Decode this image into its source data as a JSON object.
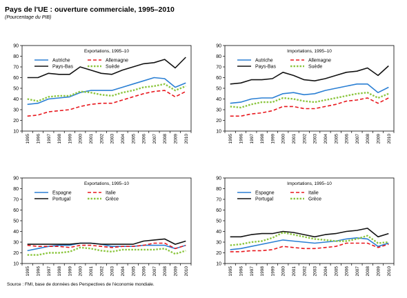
{
  "title": "Pays de l'UE : ouverture commerciale, 1995–2010",
  "subtitle": "(Pourcentage du PIB)",
  "source": "Source : FMI, base de données des Perspectives de l'économie mondiale.",
  "colors": {
    "blue": "#2a7fd4",
    "red": "#e8161c",
    "black": "#111111",
    "green": "#8cc63f"
  },
  "chart_data": [
    {
      "type": "line",
      "title": "Exportations, 1995–10",
      "x": [
        "1995",
        "1996",
        "1997",
        "1998",
        "1999",
        "2000",
        "2001",
        "2002",
        "2003",
        "2004",
        "2005",
        "2006",
        "2007",
        "2008",
        "2009",
        "2010"
      ],
      "ylim": [
        10,
        90
      ],
      "yticks": [
        10,
        20,
        30,
        40,
        50,
        60,
        70,
        80,
        90
      ],
      "legend_columns": 2,
      "series": [
        {
          "name": "Autriche",
          "color": "blue",
          "dash": "solid",
          "values": [
            35,
            36,
            40,
            41,
            42,
            46,
            48,
            48,
            48,
            51,
            54,
            57,
            60,
            59,
            51,
            55
          ]
        },
        {
          "name": "Allemagne",
          "color": "red",
          "dash": "dashed",
          "values": [
            24,
            25,
            28,
            29,
            30,
            33,
            35,
            36,
            36,
            39,
            42,
            45,
            47,
            48,
            42,
            47
          ]
        },
        {
          "name": "Pays-Bas",
          "color": "black",
          "dash": "solid",
          "values": [
            60,
            60,
            64,
            63,
            63,
            70,
            67,
            64,
            63,
            67,
            70,
            73,
            74,
            77,
            69,
            79
          ]
        },
        {
          "name": "Suède",
          "color": "green",
          "dash": "dotted",
          "values": [
            40,
            38,
            42,
            43,
            43,
            47,
            46,
            44,
            43,
            46,
            48,
            51,
            52,
            54,
            48,
            52
          ]
        }
      ]
    },
    {
      "type": "line",
      "title": "Importations, 1995–10",
      "x": [
        "1995",
        "1996",
        "1997",
        "1998",
        "1999",
        "2000",
        "2001",
        "2002",
        "2003",
        "2004",
        "2005",
        "2006",
        "2007",
        "2008",
        "2009",
        "2010"
      ],
      "ylim": [
        10,
        90
      ],
      "yticks": [
        10,
        20,
        30,
        40,
        50,
        60,
        70,
        80,
        90
      ],
      "legend_columns": 2,
      "series": [
        {
          "name": "Autriche",
          "color": "blue",
          "dash": "solid",
          "values": [
            36,
            37,
            40,
            41,
            41,
            45,
            46,
            44,
            45,
            48,
            50,
            52,
            54,
            54,
            46,
            51
          ]
        },
        {
          "name": "Allemagne",
          "color": "red",
          "dash": "dashed",
          "values": [
            24,
            24,
            26,
            27,
            29,
            33,
            33,
            31,
            31,
            33,
            35,
            38,
            39,
            41,
            36,
            41
          ]
        },
        {
          "name": "Pays-Bas",
          "color": "black",
          "dash": "solid",
          "values": [
            54,
            55,
            58,
            58,
            59,
            65,
            62,
            58,
            57,
            59,
            62,
            65,
            66,
            69,
            62,
            71
          ]
        },
        {
          "name": "Suède",
          "color": "green",
          "dash": "dotted",
          "values": [
            33,
            32,
            35,
            37,
            37,
            41,
            40,
            38,
            37,
            39,
            41,
            43,
            45,
            46,
            41,
            45
          ]
        }
      ]
    },
    {
      "type": "line",
      "title": "Exportations, 1995–10",
      "x": [
        "1995",
        "1996",
        "1997",
        "1998",
        "1999",
        "2000",
        "2001",
        "2002",
        "2003",
        "2004",
        "2005",
        "2006",
        "2007",
        "2008",
        "2009",
        "2010"
      ],
      "ylim": [
        10,
        90
      ],
      "yticks": [
        10,
        20,
        30,
        40,
        50,
        60,
        70,
        80,
        90
      ],
      "legend_columns": 2,
      "series": [
        {
          "name": "Espagne",
          "color": "blue",
          "dash": "solid",
          "values": [
            22,
            24,
            26,
            27,
            27,
            29,
            29,
            28,
            26,
            26,
            26,
            27,
            27,
            27,
            24,
            27
          ]
        },
        {
          "name": "Italie",
          "color": "red",
          "dash": "dashed",
          "values": [
            27,
            26,
            26,
            26,
            25,
            27,
            27,
            26,
            25,
            26,
            26,
            27,
            29,
            29,
            24,
            27
          ]
        },
        {
          "name": "Portugal",
          "color": "black",
          "dash": "solid",
          "values": [
            28,
            28,
            28,
            28,
            28,
            29,
            29,
            28,
            28,
            28,
            28,
            31,
            32,
            33,
            28,
            31
          ]
        },
        {
          "name": "Grèce",
          "color": "green",
          "dash": "dotted",
          "values": [
            18,
            18,
            20,
            20,
            21,
            25,
            24,
            22,
            21,
            23,
            23,
            23,
            23,
            24,
            19,
            22
          ]
        }
      ]
    },
    {
      "type": "line",
      "title": "Importations, 1995–10",
      "x": [
        "1995",
        "1996",
        "1997",
        "1998",
        "1999",
        "2000",
        "2001",
        "2002",
        "2003",
        "2004",
        "2005",
        "2006",
        "2007",
        "2008",
        "2009",
        "2010"
      ],
      "ylim": [
        10,
        90
      ],
      "yticks": [
        10,
        20,
        30,
        40,
        50,
        60,
        70,
        80,
        90
      ],
      "legend_columns": 2,
      "series": [
        {
          "name": "Espagne",
          "color": "blue",
          "dash": "solid",
          "values": [
            23,
            24,
            26,
            28,
            30,
            32,
            31,
            30,
            29,
            30,
            31,
            33,
            34,
            33,
            26,
            29
          ]
        },
        {
          "name": "Italie",
          "color": "red",
          "dash": "dashed",
          "values": [
            21,
            21,
            22,
            22,
            23,
            26,
            25,
            24,
            24,
            25,
            26,
            29,
            29,
            29,
            25,
            28
          ]
        },
        {
          "name": "Portugal",
          "color": "black",
          "dash": "solid",
          "values": [
            35,
            35,
            37,
            38,
            38,
            40,
            39,
            37,
            35,
            37,
            38,
            40,
            41,
            43,
            35,
            38
          ]
        },
        {
          "name": "Grèce",
          "color": "green",
          "dash": "dotted",
          "values": [
            27,
            28,
            30,
            31,
            34,
            39,
            37,
            35,
            33,
            32,
            31,
            31,
            33,
            36,
            29,
            30
          ]
        }
      ]
    }
  ]
}
